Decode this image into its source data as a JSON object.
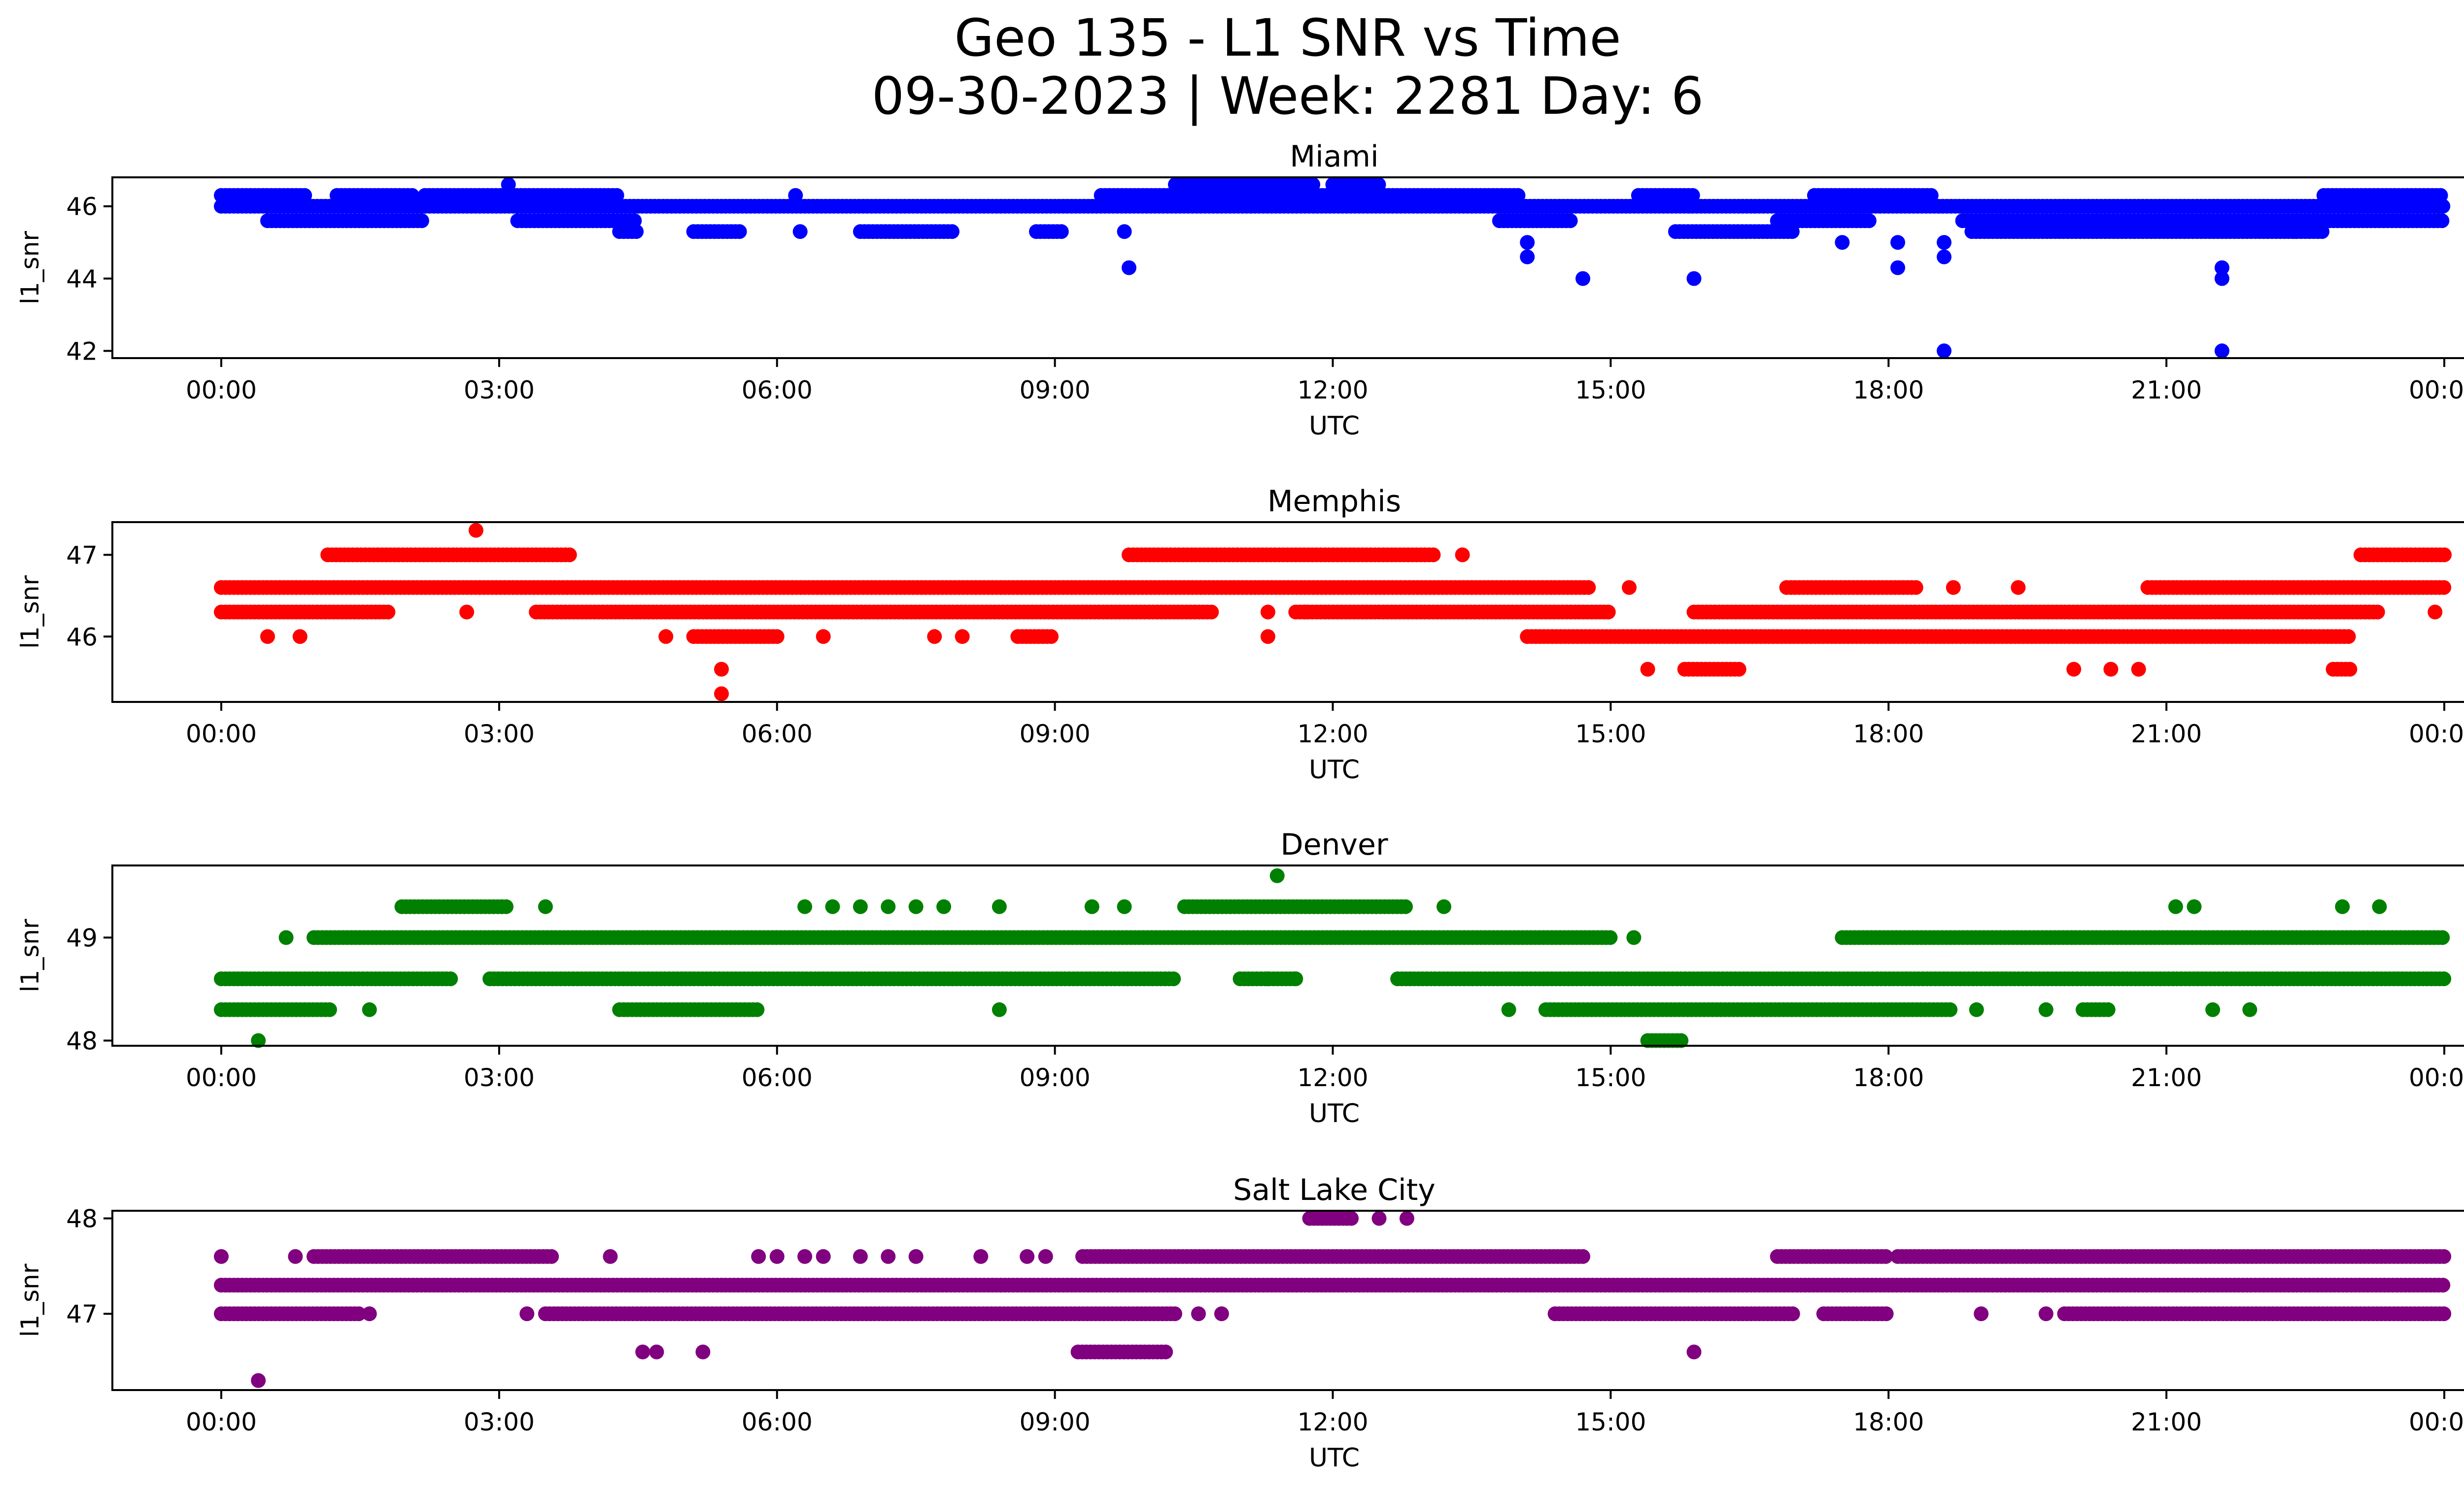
{
  "figure": {
    "title_line1": "Geo 135 - L1 SNR vs Time",
    "title_line2": "09-30-2023 | Week: 2281 Day: 6"
  },
  "chart_data": [
    {
      "type": "scatter",
      "title": "Miami",
      "xlabel": "UTC",
      "ylabel": "l1_snr",
      "color": "#0000ff",
      "x_ticks": [
        "00:00",
        "03:00",
        "06:00",
        "09:00",
        "12:00",
        "15:00",
        "18:00",
        "21:00",
        "00:00"
      ],
      "x_range_hours": [
        0,
        24
      ],
      "y_ticks": [
        42,
        44,
        46
      ],
      "ylim": [
        41.8,
        46.8
      ],
      "bands": [
        {
          "y": 46.3,
          "segments": [
            [
              0,
              0.9
            ],
            [
              1.25,
              2.1
            ],
            [
              2.2,
              4.3
            ],
            [
              9.5,
              14.0
            ],
            [
              15.3,
              15.9
            ],
            [
              17.2,
              18.5
            ],
            [
              22.7,
              24.0
            ]
          ]
        },
        {
          "y": 46.0,
          "segments": [
            [
              0,
              24.0
            ]
          ]
        },
        {
          "y": 45.6,
          "segments": [
            [
              0.5,
              2.2
            ],
            [
              3.2,
              4.5
            ],
            [
              13.8,
              14.6
            ],
            [
              16.8,
              17.8
            ],
            [
              18.8,
              24.0
            ]
          ]
        },
        {
          "y": 45.3,
          "segments": [
            [
              4.3,
              4.5
            ],
            [
              5.1,
              5.6
            ],
            [
              6.9,
              7.9
            ],
            [
              8.8,
              9.1
            ],
            [
              15.7,
              17.0
            ],
            [
              18.9,
              22.7
            ]
          ]
        },
        {
          "y": 46.6,
          "segments": [
            [
              10.3,
              11.8
            ],
            [
              12.0,
              12.5
            ]
          ]
        }
      ],
      "points": [
        {
          "x": 3.1,
          "y": 46.6
        },
        {
          "x": 6.2,
          "y": 46.3
        },
        {
          "x": 6.25,
          "y": 45.3
        },
        {
          "x": 9.8,
          "y": 44.3
        },
        {
          "x": 9.75,
          "y": 45.3
        },
        {
          "x": 14.1,
          "y": 45.0
        },
        {
          "x": 14.1,
          "y": 44.6
        },
        {
          "x": 14.7,
          "y": 44.0
        },
        {
          "x": 15.9,
          "y": 44.0
        },
        {
          "x": 17.5,
          "y": 45.0
        },
        {
          "x": 18.1,
          "y": 45.0
        },
        {
          "x": 18.1,
          "y": 44.3
        },
        {
          "x": 18.6,
          "y": 45.0
        },
        {
          "x": 18.6,
          "y": 44.6
        },
        {
          "x": 18.6,
          "y": 42.0
        },
        {
          "x": 21.6,
          "y": 44.3
        },
        {
          "x": 21.6,
          "y": 44.0
        },
        {
          "x": 21.6,
          "y": 42.0
        },
        {
          "x": 22.4,
          "y": 45.3
        }
      ]
    },
    {
      "type": "scatter",
      "title": "Memphis",
      "xlabel": "UTC",
      "ylabel": "l1_snr",
      "color": "#ff0000",
      "x_ticks": [
        "00:00",
        "03:00",
        "06:00",
        "09:00",
        "12:00",
        "15:00",
        "18:00",
        "21:00",
        "00:00"
      ],
      "x_range_hours": [
        0,
        24
      ],
      "y_ticks": [
        46,
        47
      ],
      "ylim": [
        45.2,
        47.4
      ],
      "bands": [
        {
          "y": 47.0,
          "segments": [
            [
              1.15,
              3.8
            ],
            [
              9.8,
              13.1
            ],
            [
              23.1,
              24.0
            ]
          ]
        },
        {
          "y": 46.6,
          "segments": [
            [
              0,
              14.8
            ],
            [
              16.9,
              18.3
            ],
            [
              20.8,
              24.0
            ]
          ]
        },
        {
          "y": 46.3,
          "segments": [
            [
              0,
              1.8
            ],
            [
              3.4,
              10.7
            ],
            [
              11.6,
              15.0
            ],
            [
              15.9,
              23.3
            ]
          ]
        },
        {
          "y": 46.0,
          "segments": [
            [
              5.1,
              6.0
            ],
            [
              8.6,
              9.0
            ],
            [
              14.1,
              23.0
            ]
          ]
        },
        {
          "y": 45.6,
          "segments": [
            [
              15.8,
              16.4
            ],
            [
              22.8,
              23.0
            ]
          ]
        }
      ],
      "points": [
        {
          "x": 2.75,
          "y": 47.3
        },
        {
          "x": 5.4,
          "y": 45.6
        },
        {
          "x": 5.4,
          "y": 45.3
        },
        {
          "x": 0.5,
          "y": 46.0
        },
        {
          "x": 0.85,
          "y": 46.0
        },
        {
          "x": 4.8,
          "y": 46.0
        },
        {
          "x": 6.5,
          "y": 46.0
        },
        {
          "x": 7.7,
          "y": 46.0
        },
        {
          "x": 8.0,
          "y": 46.0
        },
        {
          "x": 11.3,
          "y": 46.0
        },
        {
          "x": 11.3,
          "y": 46.3
        },
        {
          "x": 11.7,
          "y": 46.3
        },
        {
          "x": 13.4,
          "y": 47.0
        },
        {
          "x": 15.2,
          "y": 46.6
        },
        {
          "x": 15.4,
          "y": 45.6
        },
        {
          "x": 18.7,
          "y": 46.6
        },
        {
          "x": 19.4,
          "y": 46.6
        },
        {
          "x": 20.0,
          "y": 45.6
        },
        {
          "x": 20.4,
          "y": 45.6
        },
        {
          "x": 20.7,
          "y": 45.6
        },
        {
          "x": 23.9,
          "y": 46.3
        },
        {
          "x": 2.65,
          "y": 46.3
        }
      ]
    },
    {
      "type": "scatter",
      "title": "Denver",
      "xlabel": "UTC",
      "ylabel": "l1_snr",
      "color": "#008000",
      "x_ticks": [
        "00:00",
        "03:00",
        "06:00",
        "09:00",
        "12:00",
        "15:00",
        "18:00",
        "21:00",
        "00:00"
      ],
      "x_range_hours": [
        0,
        24
      ],
      "y_ticks": [
        48,
        49
      ],
      "ylim": [
        47.95,
        49.7
      ],
      "bands": [
        {
          "y": 49.3,
          "segments": [
            [
              1.95,
              3.1
            ],
            [
              10.4,
              12.8
            ]
          ]
        },
        {
          "y": 49.0,
          "segments": [
            [
              1.0,
              15.0
            ],
            [
              17.5,
              24.0
            ]
          ]
        },
        {
          "y": 48.6,
          "segments": [
            [
              0,
              2.5
            ],
            [
              2.9,
              10.3
            ],
            [
              11.0,
              11.6
            ],
            [
              12.7,
              24.0
            ]
          ]
        },
        {
          "y": 48.3,
          "segments": [
            [
              0,
              1.2
            ],
            [
              4.3,
              5.8
            ],
            [
              14.3,
              18.7
            ],
            [
              20.1,
              20.4
            ]
          ]
        },
        {
          "y": 48.0,
          "segments": [
            [
              15.4,
              15.8
            ]
          ]
        }
      ],
      "points": [
        {
          "x": 0.4,
          "y": 48.0
        },
        {
          "x": 0.7,
          "y": 49.0
        },
        {
          "x": 1.6,
          "y": 48.3
        },
        {
          "x": 3.5,
          "y": 49.3
        },
        {
          "x": 6.3,
          "y": 49.3
        },
        {
          "x": 6.6,
          "y": 49.3
        },
        {
          "x": 6.9,
          "y": 49.3
        },
        {
          "x": 7.2,
          "y": 49.3
        },
        {
          "x": 7.5,
          "y": 49.3
        },
        {
          "x": 7.8,
          "y": 49.3
        },
        {
          "x": 8.4,
          "y": 49.3
        },
        {
          "x": 8.4,
          "y": 48.3
        },
        {
          "x": 9.4,
          "y": 49.3
        },
        {
          "x": 9.75,
          "y": 49.3
        },
        {
          "x": 11.4,
          "y": 49.6
        },
        {
          "x": 11.3,
          "y": 48.6
        },
        {
          "x": 11.6,
          "y": 48.6
        },
        {
          "x": 13.2,
          "y": 49.3
        },
        {
          "x": 13.9,
          "y": 48.3
        },
        {
          "x": 15.25,
          "y": 49.0
        },
        {
          "x": 18.95,
          "y": 48.3
        },
        {
          "x": 19.7,
          "y": 48.3
        },
        {
          "x": 21.1,
          "y": 49.3
        },
        {
          "x": 21.3,
          "y": 49.3
        },
        {
          "x": 21.5,
          "y": 48.3
        },
        {
          "x": 21.9,
          "y": 48.3
        },
        {
          "x": 22.9,
          "y": 49.3
        },
        {
          "x": 23.3,
          "y": 49.3
        }
      ]
    },
    {
      "type": "scatter",
      "title": "Salt Lake City",
      "xlabel": "UTC",
      "ylabel": "l1_snr",
      "color": "#800080",
      "x_ticks": [
        "00:00",
        "03:00",
        "06:00",
        "09:00",
        "12:00",
        "15:00",
        "18:00",
        "21:00",
        "00:00"
      ],
      "x_range_hours": [
        0,
        24
      ],
      "y_ticks": [
        47,
        48
      ],
      "ylim": [
        46.2,
        48.08
      ],
      "bands": [
        {
          "y": 47.6,
          "segments": [
            [
              1.0,
              3.6
            ],
            [
              9.3,
              14.7
            ],
            [
              16.8,
              18.0
            ],
            [
              18.1,
              24.0
            ]
          ]
        },
        {
          "y": 47.3,
          "segments": [
            [
              0,
              24.0
            ]
          ]
        },
        {
          "y": 47.0,
          "segments": [
            [
              0,
              1.5
            ],
            [
              3.5,
              10.3
            ],
            [
              14.4,
              17.0
            ],
            [
              17.3,
              18.0
            ],
            [
              19.9,
              24.0
            ]
          ]
        },
        {
          "y": 46.6,
          "segments": [
            [
              9.25,
              10.2
            ]
          ]
        },
        {
          "y": 48.0,
          "segments": [
            [
              11.75,
              12.2
            ]
          ]
        }
      ],
      "points": [
        {
          "x": 0.0,
          "y": 47.6
        },
        {
          "x": 0.8,
          "y": 47.6
        },
        {
          "x": 0.4,
          "y": 46.3
        },
        {
          "x": 1.6,
          "y": 47.0
        },
        {
          "x": 3.3,
          "y": 47.0
        },
        {
          "x": 4.2,
          "y": 47.6
        },
        {
          "x": 4.55,
          "y": 46.6
        },
        {
          "x": 4.7,
          "y": 46.6
        },
        {
          "x": 5.2,
          "y": 46.6
        },
        {
          "x": 5.8,
          "y": 47.6
        },
        {
          "x": 6.0,
          "y": 47.6
        },
        {
          "x": 6.3,
          "y": 47.6
        },
        {
          "x": 6.5,
          "y": 47.6
        },
        {
          "x": 6.9,
          "y": 47.6
        },
        {
          "x": 7.2,
          "y": 47.6
        },
        {
          "x": 7.5,
          "y": 47.6
        },
        {
          "x": 8.2,
          "y": 47.6
        },
        {
          "x": 8.7,
          "y": 47.6
        },
        {
          "x": 8.9,
          "y": 47.6
        },
        {
          "x": 10.55,
          "y": 47.0
        },
        {
          "x": 10.8,
          "y": 47.0
        },
        {
          "x": 12.5,
          "y": 48.0
        },
        {
          "x": 12.8,
          "y": 48.0
        },
        {
          "x": 15.9,
          "y": 46.6
        },
        {
          "x": 19.0,
          "y": 47.0
        },
        {
          "x": 19.7,
          "y": 47.0
        }
      ]
    }
  ]
}
